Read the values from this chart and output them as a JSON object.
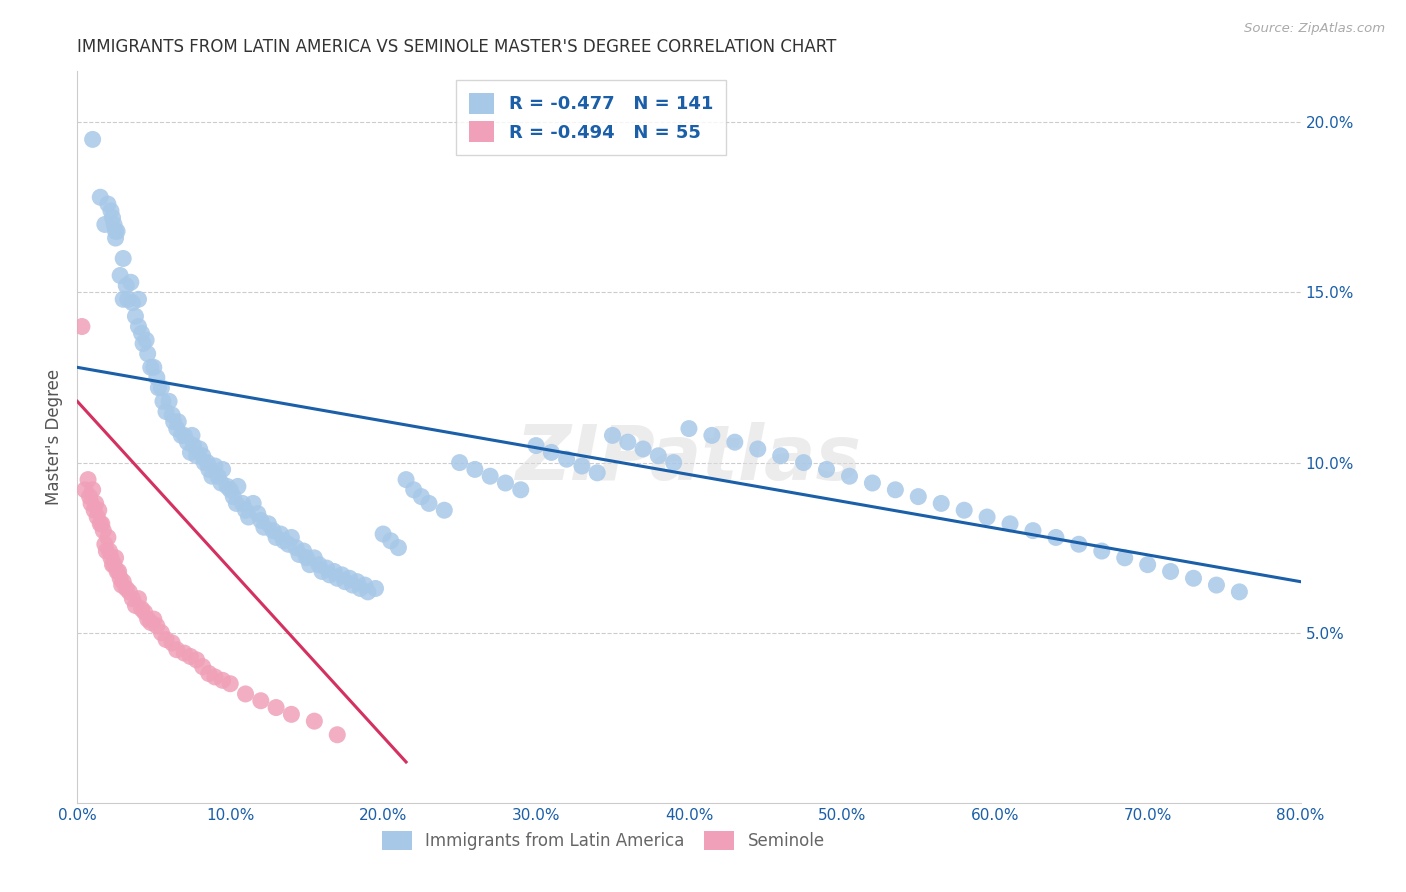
{
  "title": "IMMIGRANTS FROM LATIN AMERICA VS SEMINOLE MASTER'S DEGREE CORRELATION CHART",
  "source": "Source: ZipAtlas.com",
  "ylabel": "Master's Degree",
  "xlabel_ticks": [
    "0.0%",
    "10.0%",
    "20.0%",
    "30.0%",
    "40.0%",
    "50.0%",
    "60.0%",
    "70.0%",
    "80.0%"
  ],
  "xlabel_vals": [
    0.0,
    0.1,
    0.2,
    0.3,
    0.4,
    0.5,
    0.6,
    0.7,
    0.8
  ],
  "ylabel_ticks": [
    "5.0%",
    "10.0%",
    "15.0%",
    "20.0%"
  ],
  "ylabel_vals": [
    0.05,
    0.1,
    0.15,
    0.2
  ],
  "xlim": [
    0.0,
    0.8
  ],
  "ylim": [
    0.0,
    0.215
  ],
  "legend_blue_label": "Immigrants from Latin America",
  "legend_pink_label": "Seminole",
  "legend_blue_R": "R = -0.477",
  "legend_blue_N": "N = 141",
  "legend_pink_R": "R = -0.494",
  "legend_pink_N": "N = 55",
  "blue_color": "#a8c8e8",
  "blue_line_color": "#1a5fa8",
  "pink_color": "#f0a0b8",
  "pink_line_color": "#d43060",
  "watermark": "ZIPatlas",
  "blue_scatter_x": [
    0.01,
    0.015,
    0.018,
    0.02,
    0.022,
    0.023,
    0.024,
    0.025,
    0.025,
    0.026,
    0.028,
    0.03,
    0.03,
    0.032,
    0.033,
    0.035,
    0.036,
    0.038,
    0.04,
    0.04,
    0.042,
    0.043,
    0.045,
    0.046,
    0.048,
    0.05,
    0.052,
    0.053,
    0.055,
    0.056,
    0.058,
    0.06,
    0.062,
    0.063,
    0.065,
    0.066,
    0.068,
    0.07,
    0.072,
    0.074,
    0.075,
    0.076,
    0.078,
    0.08,
    0.082,
    0.083,
    0.085,
    0.086,
    0.088,
    0.09,
    0.092,
    0.094,
    0.095,
    0.098,
    0.1,
    0.102,
    0.104,
    0.105,
    0.108,
    0.11,
    0.112,
    0.115,
    0.118,
    0.12,
    0.122,
    0.125,
    0.128,
    0.13,
    0.133,
    0.135,
    0.138,
    0.14,
    0.143,
    0.145,
    0.148,
    0.15,
    0.152,
    0.155,
    0.158,
    0.16,
    0.163,
    0.165,
    0.168,
    0.17,
    0.173,
    0.175,
    0.178,
    0.18,
    0.183,
    0.185,
    0.188,
    0.19,
    0.195,
    0.2,
    0.205,
    0.21,
    0.215,
    0.22,
    0.225,
    0.23,
    0.24,
    0.25,
    0.26,
    0.27,
    0.28,
    0.29,
    0.3,
    0.31,
    0.32,
    0.33,
    0.34,
    0.35,
    0.36,
    0.37,
    0.38,
    0.39,
    0.4,
    0.415,
    0.43,
    0.445,
    0.46,
    0.475,
    0.49,
    0.505,
    0.52,
    0.535,
    0.55,
    0.565,
    0.58,
    0.595,
    0.61,
    0.625,
    0.64,
    0.655,
    0.67,
    0.685,
    0.7,
    0.715,
    0.73,
    0.745,
    0.76
  ],
  "blue_scatter_y": [
    0.195,
    0.178,
    0.17,
    0.176,
    0.174,
    0.172,
    0.17,
    0.168,
    0.166,
    0.168,
    0.155,
    0.16,
    0.148,
    0.152,
    0.148,
    0.153,
    0.147,
    0.143,
    0.148,
    0.14,
    0.138,
    0.135,
    0.136,
    0.132,
    0.128,
    0.128,
    0.125,
    0.122,
    0.122,
    0.118,
    0.115,
    0.118,
    0.114,
    0.112,
    0.11,
    0.112,
    0.108,
    0.108,
    0.106,
    0.103,
    0.108,
    0.105,
    0.102,
    0.104,
    0.102,
    0.1,
    0.1,
    0.098,
    0.096,
    0.099,
    0.096,
    0.094,
    0.098,
    0.093,
    0.092,
    0.09,
    0.088,
    0.093,
    0.088,
    0.086,
    0.084,
    0.088,
    0.085,
    0.083,
    0.081,
    0.082,
    0.08,
    0.078,
    0.079,
    0.077,
    0.076,
    0.078,
    0.075,
    0.073,
    0.074,
    0.072,
    0.07,
    0.072,
    0.07,
    0.068,
    0.069,
    0.067,
    0.068,
    0.066,
    0.067,
    0.065,
    0.066,
    0.064,
    0.065,
    0.063,
    0.064,
    0.062,
    0.063,
    0.079,
    0.077,
    0.075,
    0.095,
    0.092,
    0.09,
    0.088,
    0.086,
    0.1,
    0.098,
    0.096,
    0.094,
    0.092,
    0.105,
    0.103,
    0.101,
    0.099,
    0.097,
    0.108,
    0.106,
    0.104,
    0.102,
    0.1,
    0.11,
    0.108,
    0.106,
    0.104,
    0.102,
    0.1,
    0.098,
    0.096,
    0.094,
    0.092,
    0.09,
    0.088,
    0.086,
    0.084,
    0.082,
    0.08,
    0.078,
    0.076,
    0.074,
    0.072,
    0.07,
    0.068,
    0.066,
    0.064,
    0.062
  ],
  "pink_scatter_x": [
    0.003,
    0.005,
    0.007,
    0.008,
    0.009,
    0.01,
    0.011,
    0.012,
    0.013,
    0.014,
    0.015,
    0.016,
    0.017,
    0.018,
    0.019,
    0.02,
    0.021,
    0.022,
    0.023,
    0.024,
    0.025,
    0.026,
    0.027,
    0.028,
    0.029,
    0.03,
    0.032,
    0.034,
    0.036,
    0.038,
    0.04,
    0.042,
    0.044,
    0.046,
    0.048,
    0.05,
    0.052,
    0.055,
    0.058,
    0.062,
    0.065,
    0.07,
    0.074,
    0.078,
    0.082,
    0.086,
    0.09,
    0.095,
    0.1,
    0.11,
    0.12,
    0.13,
    0.14,
    0.155,
    0.17
  ],
  "pink_scatter_y": [
    0.14,
    0.092,
    0.095,
    0.09,
    0.088,
    0.092,
    0.086,
    0.088,
    0.084,
    0.086,
    0.082,
    0.082,
    0.08,
    0.076,
    0.074,
    0.078,
    0.074,
    0.072,
    0.07,
    0.07,
    0.072,
    0.068,
    0.068,
    0.066,
    0.064,
    0.065,
    0.063,
    0.062,
    0.06,
    0.058,
    0.06,
    0.057,
    0.056,
    0.054,
    0.053,
    0.054,
    0.052,
    0.05,
    0.048,
    0.047,
    0.045,
    0.044,
    0.043,
    0.042,
    0.04,
    0.038,
    0.037,
    0.036,
    0.035,
    0.032,
    0.03,
    0.028,
    0.026,
    0.024,
    0.02
  ],
  "blue_trend_x": [
    0.0,
    0.8
  ],
  "blue_trend_y": [
    0.128,
    0.065
  ],
  "pink_trend_x": [
    0.0,
    0.215
  ],
  "pink_trend_y": [
    0.118,
    0.012
  ]
}
